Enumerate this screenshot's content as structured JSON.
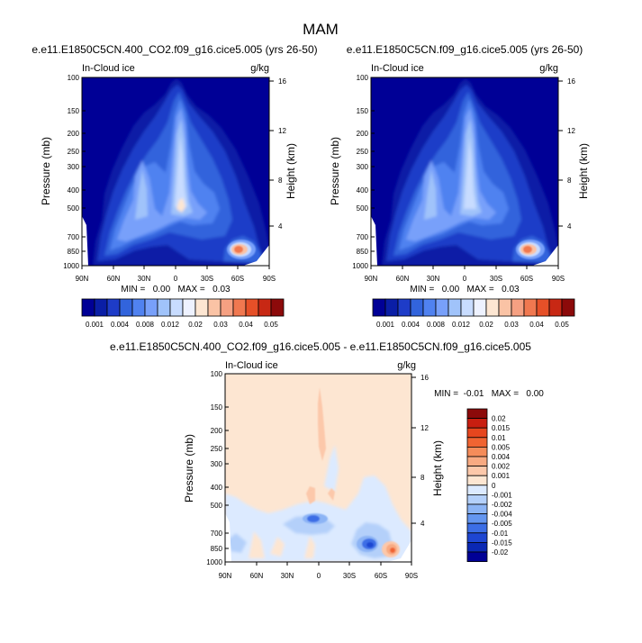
{
  "figure_title": "MAM",
  "chart_data": [
    {
      "type": "heatmap",
      "title": "e.e11.E1850C5CN.400_CO2.f09_g16.cice5.005 (yrs 26-50)",
      "left_title": "In-Cloud ice",
      "units": "g/kg",
      "ylabel": "Pressure (mb)",
      "ylabel_right": "Height (km)",
      "x_ticks": [
        "90N",
        "60N",
        "30N",
        "0",
        "30S",
        "60S",
        "90S"
      ],
      "y_ticks": [
        "100",
        "150",
        "200",
        "250",
        "300",
        "400",
        "500",
        "700",
        "850",
        "1000"
      ],
      "y_ticks_right": [
        "16",
        "12",
        "8",
        "4"
      ],
      "stats": "MIN =   0.00   MAX =   0.03",
      "min": 0.0,
      "max": 0.03,
      "colorbar_orientation": "horizontal",
      "colorbar_labels": [
        "0.001",
        "0.004",
        "0.008",
        "0.012",
        "0.02",
        "0.03",
        "0.04",
        "0.05"
      ]
    },
    {
      "type": "heatmap",
      "title": "e.e11.E1850C5CN.f09_g16.cice5.005 (yrs 26-50)",
      "left_title": "In-Cloud ice",
      "units": "g/kg",
      "ylabel": "Pressure (mb)",
      "ylabel_right": "Height (km)",
      "x_ticks": [
        "90N",
        "60N",
        "30N",
        "0",
        "30S",
        "60S",
        "90S"
      ],
      "y_ticks": [
        "100",
        "150",
        "200",
        "250",
        "300",
        "400",
        "500",
        "700",
        "850",
        "1000"
      ],
      "y_ticks_right": [
        "16",
        "12",
        "8",
        "4"
      ],
      "stats": "MIN =   0.00   MAX =   0.03",
      "min": 0.0,
      "max": 0.03,
      "colorbar_orientation": "horizontal",
      "colorbar_labels": [
        "0.001",
        "0.004",
        "0.008",
        "0.012",
        "0.02",
        "0.03",
        "0.04",
        "0.05"
      ]
    },
    {
      "type": "heatmap",
      "title": "e.e11.E1850C5CN.400_CO2.f09_g16.cice5.005 - e.e11.E1850C5CN.f09_g16.cice5.005",
      "left_title": "In-Cloud ice",
      "units": "g/kg",
      "ylabel": "Pressure (mb)",
      "ylabel_right": "Height (km)",
      "x_ticks": [
        "90N",
        "60N",
        "30N",
        "0",
        "30S",
        "60S",
        "90S"
      ],
      "y_ticks": [
        "100",
        "150",
        "200",
        "250",
        "300",
        "400",
        "500",
        "700",
        "850",
        "1000"
      ],
      "y_ticks_right": [
        "16",
        "12",
        "8",
        "4"
      ],
      "stats": "MIN =  -0.01   MAX =   0.00",
      "min": -0.01,
      "max": 0.0,
      "colorbar_orientation": "vertical",
      "colorbar_labels": [
        "0.02",
        "0.015",
        "0.01",
        "0.005",
        "0.004",
        "0.002",
        "0.001",
        "0",
        "-0.001",
        "-0.002",
        "-0.004",
        "-0.005",
        "-0.01",
        "-0.015",
        "-0.02"
      ]
    }
  ],
  "colors": {
    "abs_scale": [
      "#000096",
      "#0a1ea6",
      "#1e3cc8",
      "#3264dc",
      "#5082f0",
      "#78a0fa",
      "#a0c3fa",
      "#c8dcff",
      "#eef2ff",
      "#fde6d2",
      "#fac3a5",
      "#f5a082",
      "#f07850",
      "#e65028",
      "#c82814",
      "#8c0a0a"
    ],
    "diff_scale": [
      "#8c0a0a",
      "#c81e10",
      "#e6461e",
      "#f06432",
      "#f58c5a",
      "#f8aa82",
      "#fcc8aa",
      "#fde6d2",
      "#dceaff",
      "#b4d0fa",
      "#8cb4f5",
      "#6496f0",
      "#3c6ee6",
      "#1e46d2",
      "#0a28b4",
      "#000096"
    ]
  }
}
